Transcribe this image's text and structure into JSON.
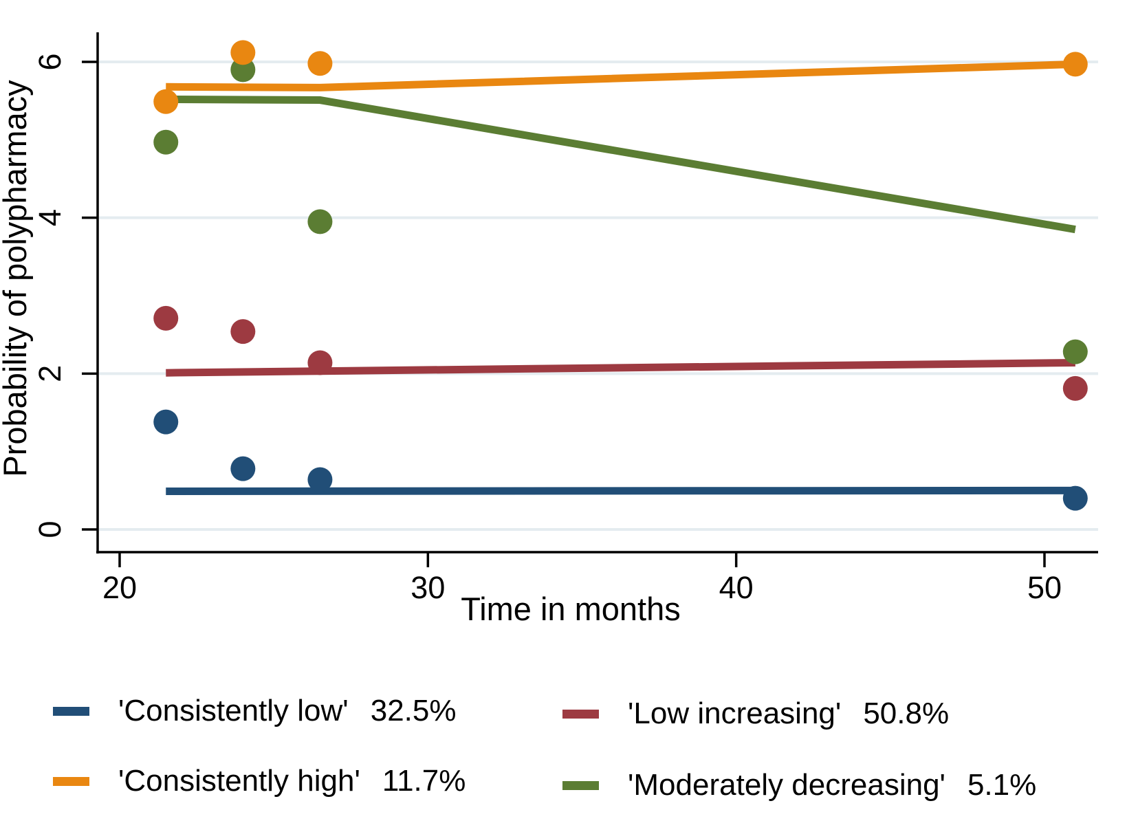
{
  "chart_data": {
    "type": "line",
    "title": "",
    "xlabel": "Time in months",
    "ylabel": "Probability of polypharmacy",
    "x_ticks": [
      20,
      30,
      40,
      50
    ],
    "y_ticks": [
      0,
      2,
      4,
      6
    ],
    "xlim": [
      19.3,
      51.8
    ],
    "ylim": [
      -0.3,
      6.7
    ],
    "grid": "horizontal gridlines at y ticks",
    "gridline_color": "#e4ecf0",
    "axis_color": "#000000",
    "legend_position": "below chart, two columns",
    "series": [
      {
        "name": "'Consistently low'",
        "pct": "32.5%",
        "color": "#214e77",
        "scatter_x": [
          21.5,
          24,
          26.5,
          51
        ],
        "scatter_y": [
          1.38,
          0.78,
          0.64,
          0.4
        ],
        "line_x": [
          21.5,
          51
        ],
        "line_y": [
          0.49,
          0.5
        ]
      },
      {
        "name": "'Low increasing'",
        "pct": "50.8%",
        "color": "#9d3a41",
        "scatter_x": [
          21.5,
          24,
          26.5,
          51
        ],
        "scatter_y": [
          2.71,
          2.54,
          2.14,
          1.81
        ],
        "line_x": [
          21.5,
          51
        ],
        "line_y": [
          2.01,
          2.14
        ]
      },
      {
        "name": "'Moderately decreasing'",
        "pct": "5.1%",
        "color": "#5b7d33",
        "scatter_x": [
          21.5,
          24,
          26.5,
          51
        ],
        "scatter_y": [
          4.97,
          5.9,
          3.95,
          2.28
        ],
        "line_x": [
          21.5,
          26.5,
          51
        ],
        "line_y": [
          5.52,
          5.51,
          3.85
        ]
      },
      {
        "name": "'Consistently high'",
        "pct": "11.7%",
        "color": "#e98711",
        "scatter_x": [
          21.5,
          24,
          26.5,
          51
        ],
        "scatter_y": [
          5.49,
          6.12,
          5.98,
          5.97
        ],
        "line_x": [
          21.5,
          26.5,
          51
        ],
        "line_y": [
          5.68,
          5.67,
          5.97
        ]
      }
    ]
  },
  "legend": {
    "items": [
      {
        "label": "'Consistently low'",
        "pct": "32.5%",
        "color": "#214e77"
      },
      {
        "label": "'Low increasing'",
        "pct": "50.8%",
        "color": "#9d3a41"
      },
      {
        "label": "'Consistently high'",
        "pct": "11.7%",
        "color": "#e98711"
      },
      {
        "label": "'Moderately decreasing'",
        "pct": "5.1%",
        "color": "#5b7d33"
      }
    ]
  }
}
